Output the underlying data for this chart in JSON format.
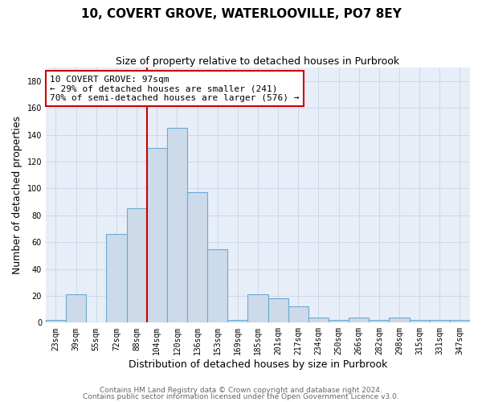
{
  "title": "10, COVERT GROVE, WATERLOOVILLE, PO7 8EY",
  "subtitle": "Size of property relative to detached houses in Purbrook",
  "xlabel": "Distribution of detached houses by size in Purbrook",
  "ylabel": "Number of detached properties",
  "footnote1": "Contains HM Land Registry data © Crown copyright and database right 2024.",
  "footnote2": "Contains public sector information licensed under the Open Government Licence v3.0.",
  "categories": [
    "23sqm",
    "39sqm",
    "55sqm",
    "72sqm",
    "88sqm",
    "104sqm",
    "120sqm",
    "136sqm",
    "153sqm",
    "169sqm",
    "185sqm",
    "201sqm",
    "217sqm",
    "234sqm",
    "250sqm",
    "266sqm",
    "282sqm",
    "298sqm",
    "315sqm",
    "331sqm",
    "347sqm"
  ],
  "values": [
    2,
    21,
    0,
    66,
    85,
    130,
    145,
    97,
    55,
    2,
    21,
    18,
    12,
    4,
    2,
    4,
    2,
    4,
    2,
    2,
    2
  ],
  "bar_color": "#ccdaea",
  "bar_edge_color": "#6aaad4",
  "property_bin_index": 5,
  "annotation_line1": "10 COVERT GROVE: 97sqm",
  "annotation_line2": "← 29% of detached houses are smaller (241)",
  "annotation_line3": "70% of semi-detached houses are larger (576) →",
  "annotation_box_color": "#cc0000",
  "ylim": [
    0,
    190
  ],
  "yticks": [
    0,
    20,
    40,
    60,
    80,
    100,
    120,
    140,
    160,
    180
  ],
  "grid_color": "#c8d4e4",
  "background_color": "#e8eef8",
  "title_fontsize": 11,
  "subtitle_fontsize": 9,
  "axis_label_fontsize": 9,
  "tick_fontsize": 7,
  "annotation_fontsize": 8,
  "footnote_fontsize": 6.5
}
